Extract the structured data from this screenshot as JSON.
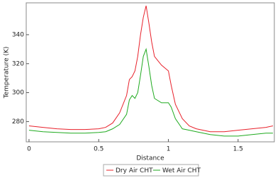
{
  "chart_data": {
    "type": "line",
    "xlabel": "Distance",
    "ylabel": "Temperature (K)",
    "x": [
      0,
      0.1,
      0.2,
      0.3,
      0.4,
      0.5,
      0.55,
      0.6,
      0.65,
      0.7,
      0.72,
      0.74,
      0.76,
      0.78,
      0.8,
      0.82,
      0.84,
      0.86,
      0.88,
      0.9,
      0.95,
      1.0,
      1.02,
      1.05,
      1.1,
      1.15,
      1.2,
      1.3,
      1.4,
      1.5,
      1.6,
      1.7,
      1.75
    ],
    "series": [
      {
        "name": "Dry Air CHT",
        "color": "#e8202a",
        "values": [
          277,
          276,
          275,
          274.5,
          274.5,
          275,
          276,
          279,
          286,
          298,
          309,
          311,
          315,
          325,
          340,
          352,
          360,
          348,
          335,
          325,
          319,
          315,
          305,
          292,
          282,
          277,
          275,
          273,
          273,
          274,
          275,
          276,
          277
        ]
      },
      {
        "name": "Wet Air CHT",
        "color": "#1faa1f",
        "values": [
          274,
          273,
          272.5,
          272,
          272,
          272.5,
          273,
          275,
          278,
          285,
          295,
          298,
          296,
          300,
          312,
          325,
          330,
          318,
          305,
          296,
          293,
          293,
          290,
          282,
          275,
          274,
          273,
          271,
          270,
          270,
          271,
          272,
          272
        ]
      }
    ],
    "xlim": [
      -0.02,
      1.76
    ],
    "xticks": [
      0,
      0.5,
      1,
      1.5
    ],
    "ylim": [
      266,
      362
    ],
    "yticks": [
      280,
      300,
      320,
      340
    ],
    "grid": false,
    "legend": "bottom"
  }
}
